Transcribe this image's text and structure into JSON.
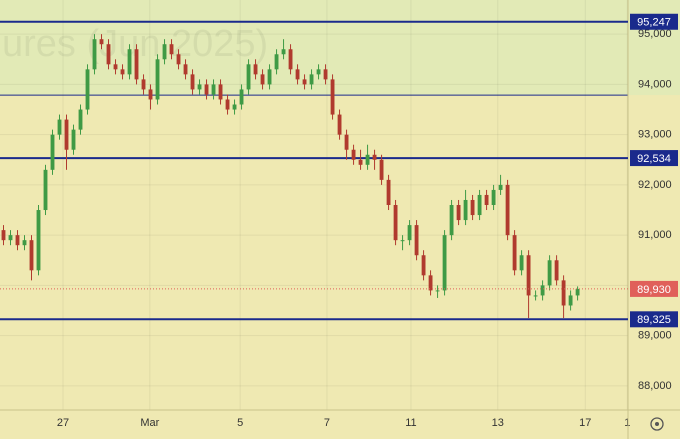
{
  "chart_data": {
    "type": "candlestick",
    "watermark": "ures (Jun 2025)",
    "xlim": [
      -0.5,
      89.2
    ],
    "xticks": [
      {
        "value": 8.5,
        "label": "27"
      },
      {
        "value": 20.9,
        "label": "Mar"
      },
      {
        "value": 33.8,
        "label": "5"
      },
      {
        "value": 46.2,
        "label": "7"
      },
      {
        "value": 58.2,
        "label": "11"
      },
      {
        "value": 70.6,
        "label": "13"
      },
      {
        "value": 83.1,
        "label": "17"
      },
      {
        "value": 89.1,
        "label": "1"
      }
    ],
    "ylim": [
      87520,
      95680
    ],
    "yticks": [
      {
        "value": 88000,
        "label": "88,000"
      },
      {
        "value": 89000,
        "label": "89,000"
      },
      {
        "value": 90000,
        "label": "90,000"
      },
      {
        "value": 91000,
        "label": "91,000"
      },
      {
        "value": 92000,
        "label": "92,000"
      },
      {
        "value": 93000,
        "label": "93,000"
      },
      {
        "value": 94000,
        "label": "94,000"
      },
      {
        "value": 95000,
        "label": "95,000"
      }
    ],
    "up_color": "#3f9a45",
    "down_color": "#b03a2e",
    "zone_boundary": 93787,
    "upper_zone_color": "#e2eab6",
    "lower_zone_color": "#efe9b2",
    "levels": [
      {
        "value": 95247,
        "label": "95,247",
        "color": "#1a2a8c"
      },
      {
        "value": 92534,
        "label": "92,534",
        "color": "#1a2a8c"
      },
      {
        "value": 89325,
        "label": "89,325",
        "color": "#1a2a8c"
      }
    ],
    "last_price": {
      "value": 89930,
      "label": "89,930",
      "color": "#e0605a"
    },
    "open": [
      91100,
      90900,
      91000,
      90800,
      90900,
      90300,
      91500,
      92300,
      93000,
      93300,
      92700,
      93100,
      93500,
      94300,
      94900,
      94800,
      94400,
      94300,
      94200,
      94700,
      94100,
      93900,
      93700,
      94500,
      94800,
      94600,
      94400,
      94200,
      93900,
      94000,
      93800,
      94000,
      93700,
      93500,
      93600,
      93900,
      94400,
      94200,
      94000,
      94300,
      94600,
      94700,
      94300,
      94100,
      94000,
      94200,
      94300,
      94100,
      93400,
      93000,
      92700,
      92500,
      92400,
      92600,
      92500,
      92100,
      91600,
      90900,
      90900,
      91200,
      90600,
      90200,
      89900,
      89900,
      91000,
      91600,
      91300,
      91700,
      91400,
      91800,
      91600,
      91900,
      92000,
      91000,
      90300,
      90600,
      89800,
      89800,
      90000,
      90500,
      90100,
      89600,
      89800
    ],
    "high": [
      91200,
      91100,
      91100,
      91000,
      91000,
      91600,
      92400,
      93100,
      93400,
      93400,
      93200,
      93600,
      94400,
      95000,
      95000,
      94900,
      94500,
      94400,
      94800,
      94800,
      94200,
      94000,
      94600,
      94900,
      94900,
      94700,
      94500,
      94300,
      94100,
      94100,
      94100,
      94100,
      93800,
      93700,
      94000,
      94500,
      94500,
      94300,
      94400,
      94700,
      94900,
      94800,
      94400,
      94200,
      94300,
      94400,
      94400,
      94200,
      93500,
      93100,
      92800,
      92700,
      92800,
      92700,
      92600,
      92200,
      91700,
      91000,
      91300,
      91300,
      90700,
      90300,
      90000,
      91100,
      91700,
      91700,
      91900,
      91800,
      91900,
      91900,
      92000,
      92200,
      92100,
      91100,
      90700,
      90700,
      89900,
      90100,
      90600,
      90600,
      90200,
      89900,
      89980
    ],
    "low": [
      90800,
      90800,
      90700,
      90700,
      90100,
      90200,
      91400,
      92200,
      92900,
      92300,
      92600,
      93000,
      93400,
      94200,
      94700,
      94300,
      94200,
      94100,
      94100,
      94000,
      93800,
      93500,
      93600,
      94400,
      94500,
      94300,
      94100,
      93800,
      93800,
      93700,
      93700,
      93600,
      93400,
      93400,
      93500,
      93800,
      94100,
      93900,
      93900,
      94200,
      94500,
      94200,
      94000,
      93900,
      93900,
      94100,
      94000,
      93300,
      92900,
      92500,
      92400,
      92300,
      92300,
      92300,
      92000,
      91500,
      90800,
      90700,
      90800,
      90500,
      90100,
      89800,
      89750,
      89800,
      90900,
      91200,
      91200,
      91300,
      91300,
      91500,
      91500,
      91800,
      90900,
      90200,
      90200,
      89350,
      89700,
      89700,
      89900,
      90000,
      89350,
      89500,
      89700
    ],
    "close": [
      90900,
      91000,
      90800,
      90900,
      90300,
      91500,
      92300,
      93000,
      93300,
      92700,
      93100,
      93500,
      94300,
      94900,
      94800,
      94400,
      94300,
      94200,
      94700,
      94100,
      93900,
      93700,
      94500,
      94800,
      94600,
      94400,
      94200,
      93900,
      94000,
      93800,
      94000,
      93700,
      93500,
      93600,
      93900,
      94400,
      94200,
      94000,
      94300,
      94600,
      94700,
      94300,
      94100,
      94000,
      94200,
      94300,
      94100,
      93400,
      93000,
      92700,
      92500,
      92400,
      92600,
      92500,
      92100,
      91600,
      90900,
      90900,
      91200,
      90600,
      90200,
      89900,
      89900,
      91000,
      91600,
      91300,
      91700,
      91400,
      91800,
      91600,
      91900,
      92000,
      91000,
      90300,
      90600,
      89800,
      89800,
      90000,
      90500,
      90100,
      89600,
      89800,
      89930
    ]
  }
}
